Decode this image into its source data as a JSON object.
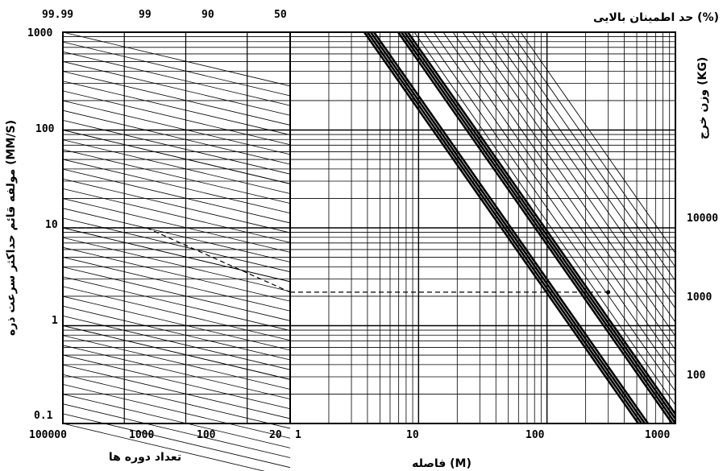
{
  "chart_data": {
    "type": "line",
    "title": "",
    "top_axis_title": "(%) حد اطمینان بالایی",
    "confidence_levels": [
      "99.99",
      "99",
      "90",
      "50"
    ],
    "left_axis_title": "(MM/S) مولفه قائم حداکثر سرعت ذره",
    "left_axis": {
      "scale": "log",
      "range": [
        0.1,
        1000
      ],
      "ticks": [
        "1000",
        "100",
        "10",
        "1",
        "0.1"
      ]
    },
    "cycles_axis_title": "تعداد دوره ها",
    "cycles_axis": {
      "scale": "log",
      "range": [
        100000,
        20
      ],
      "ticks": [
        "100000",
        "1000",
        "100",
        "20"
      ]
    },
    "distance_axis_title": "(M) فاصله",
    "distance_axis": {
      "scale": "log",
      "range": [
        1,
        1000
      ],
      "ticks": [
        "1",
        "10",
        "100",
        "1000"
      ]
    },
    "right_axis_title": "(KG) وزن خرج",
    "right_axis": {
      "scale": "log",
      "ticks": [
        "10000",
        "1000",
        "100"
      ]
    },
    "example_path": {
      "distance_m": 300,
      "start_velocity_mm_s": 10,
      "end_velocity_mm_s": 2.2
    },
    "grid": true
  }
}
